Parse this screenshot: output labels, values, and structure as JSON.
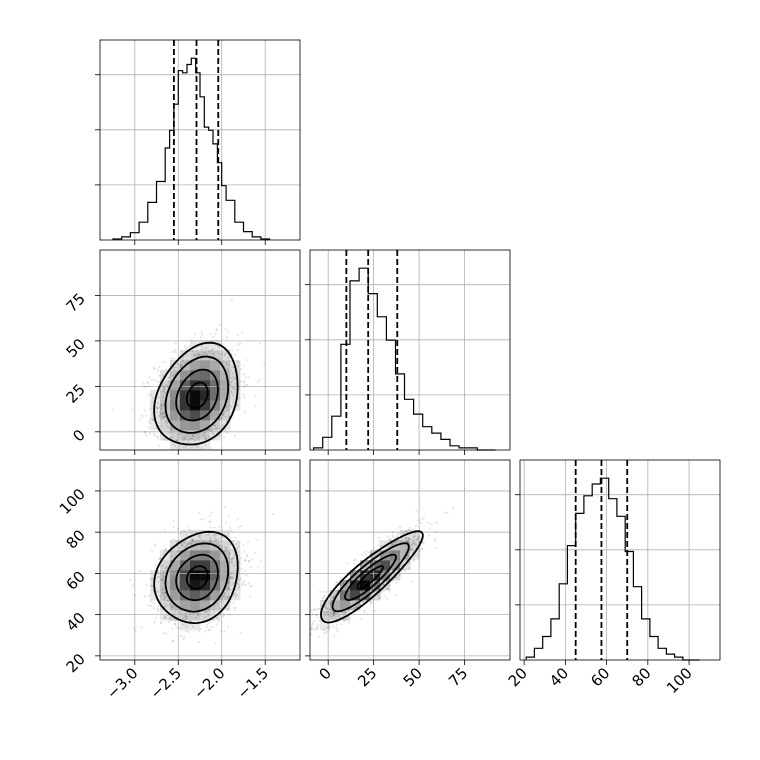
{
  "chart_data": {
    "type": "corner",
    "parameters": [
      {
        "name": "",
        "range": [
          -3.4,
          -1.1
        ],
        "ticks": [
          -3.0,
          -2.5,
          -2.0,
          -1.5
        ],
        "tick_labels": [
          "−3.0",
          "−2.5",
          "−2.0",
          "−1.5"
        ]
      },
      {
        "name": "",
        "range": [
          -10,
          100
        ],
        "ticks": [
          0,
          25,
          50,
          75
        ],
        "tick_labels": [
          "0",
          "25",
          "50",
          "75"
        ]
      },
      {
        "name": "",
        "range": [
          18,
          115
        ],
        "ticks": [
          20,
          40,
          60,
          80,
          100
        ],
        "tick_labels": [
          "20",
          "40",
          "60",
          "80",
          "100"
        ]
      }
    ],
    "marginals": [
      {
        "bin_edges": [
          -3.25,
          -3.15,
          -3.05,
          -2.95,
          -2.85,
          -2.75,
          -2.65,
          -2.6,
          -2.55,
          -2.5,
          -2.45,
          -2.4,
          -2.35,
          -2.3,
          -2.25,
          -2.2,
          -2.15,
          -2.1,
          -2.05,
          -2.0,
          -1.95,
          -1.85,
          -1.75,
          -1.65,
          -1.55,
          -1.45
        ],
        "counts": [
          1,
          3,
          7,
          17,
          36,
          56,
          88,
          105,
          130,
          162,
          160,
          168,
          174,
          160,
          137,
          108,
          105,
          92,
          74,
          52,
          38,
          17,
          8,
          3,
          1
        ],
        "quantiles": [
          -2.55,
          -2.29,
          -2.04
        ]
      },
      {
        "bin_edges": [
          -8,
          -3,
          2,
          7,
          12,
          17,
          22,
          27,
          32,
          37,
          42,
          47,
          52,
          57,
          62,
          67,
          72,
          77,
          82,
          87,
          92
        ],
        "counts": [
          1,
          6,
          16,
          50,
          80,
          86,
          74,
          63,
          52,
          36,
          24,
          17,
          11,
          8,
          5,
          2,
          1,
          1,
          0,
          0
        ],
        "quantiles": [
          10,
          22,
          38
        ]
      },
      {
        "bin_edges": [
          21,
          25,
          29,
          33,
          37,
          41,
          45,
          49,
          53,
          57,
          61,
          65,
          69,
          73,
          77,
          81,
          85,
          89,
          93,
          97,
          101,
          105
        ],
        "counts": [
          1,
          4,
          8,
          14,
          26,
          39,
          50,
          56,
          60,
          62,
          55,
          49,
          37,
          25,
          14,
          8,
          4,
          2,
          1,
          0,
          0
        ],
        "quantiles": [
          45,
          57.5,
          70
        ]
      }
    ],
    "joints": [
      {
        "x_param": 0,
        "y_param": 1,
        "mean": [
          -2.28,
          20
        ],
        "sd": [
          0.24,
          14
        ],
        "rho": 0.25,
        "contour_levels_sigma": [
          0.5,
          1.0,
          1.5,
          2.0
        ],
        "density_peak": [
          -2.32,
          17
        ]
      },
      {
        "x_param": 0,
        "y_param": 2,
        "mean": [
          -2.28,
          58
        ],
        "sd": [
          0.24,
          11
        ],
        "rho": 0.18,
        "contour_levels_sigma": [
          0.5,
          1.0,
          1.5,
          2.0
        ],
        "density_peak": [
          -2.25,
          58
        ]
      },
      {
        "x_param": 1,
        "y_param": 2,
        "mean": [
          23,
          58
        ],
        "sd": [
          14,
          11
        ],
        "rho": 0.88,
        "contour_levels_sigma": [
          0.5,
          1.0,
          1.5,
          2.0
        ],
        "density_peak": [
          18,
          54
        ]
      }
    ],
    "grid": true,
    "legend": "none"
  }
}
